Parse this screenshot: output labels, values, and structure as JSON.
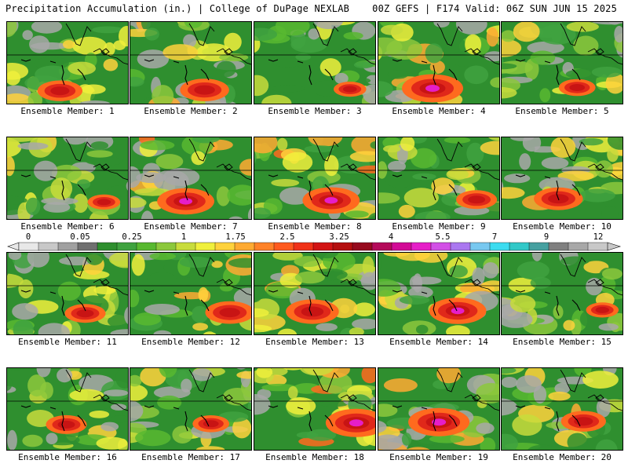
{
  "header": {
    "title_left": "Precipitation Accumulation (in.) | College of DuPage NEXLAB",
    "title_right": "00Z GEFS | F174 Valid: 06Z SUN JUN 15 2025"
  },
  "panels": [
    {
      "label": "Ensemble Member: 1",
      "seed": 11,
      "intensity": 1.1
    },
    {
      "label": "Ensemble Member: 2",
      "seed": 22,
      "intensity": 1.2
    },
    {
      "label": "Ensemble Member: 3",
      "seed": 33,
      "intensity": 0.8
    },
    {
      "label": "Ensemble Member: 4",
      "seed": 44,
      "intensity": 1.5
    },
    {
      "label": "Ensemble Member: 5",
      "seed": 55,
      "intensity": 0.9
    },
    {
      "label": "Ensemble Member: 6",
      "seed": 66,
      "intensity": 0.8
    },
    {
      "label": "Ensemble Member: 7",
      "seed": 77,
      "intensity": 1.4
    },
    {
      "label": "Ensemble Member: 8",
      "seed": 88,
      "intensity": 1.4
    },
    {
      "label": "Ensemble Member: 9",
      "seed": 99,
      "intensity": 1.0
    },
    {
      "label": "Ensemble Member: 10",
      "seed": 110,
      "intensity": 1.2
    },
    {
      "label": "Ensemble Member: 11",
      "seed": 121,
      "intensity": 1.0
    },
    {
      "label": "Ensemble Member: 12",
      "seed": 132,
      "intensity": 1.2
    },
    {
      "label": "Ensemble Member: 13",
      "seed": 143,
      "intensity": 1.3
    },
    {
      "label": "Ensemble Member: 14",
      "seed": 154,
      "intensity": 1.4
    },
    {
      "label": "Ensemble Member: 15",
      "seed": 165,
      "intensity": 0.8
    },
    {
      "label": "Ensemble Member: 16",
      "seed": 176,
      "intensity": 1.0
    },
    {
      "label": "Ensemble Member: 17",
      "seed": 187,
      "intensity": 0.9
    },
    {
      "label": "Ensemble Member: 18",
      "seed": 198,
      "intensity": 1.5
    },
    {
      "label": "Ensemble Member: 19",
      "seed": 209,
      "intensity": 1.5
    },
    {
      "label": "Ensemble Member: 20",
      "seed": 220,
      "intensity": 1.1
    }
  ],
  "colorbar": {
    "labels": [
      "0",
      "0.05",
      "0.25",
      "1",
      "1.75",
      "2.5",
      "3.25",
      "4",
      "5.5",
      "7",
      "9",
      "12"
    ],
    "colors": [
      "#e8e8e8",
      "#c8c8c8",
      "#a0a0a0",
      "#707070",
      "#2f8f2f",
      "#3fa23f",
      "#58b830",
      "#8cc83c",
      "#c8dc3c",
      "#f0f03c",
      "#ffd23c",
      "#ffaa32",
      "#ff8228",
      "#ff5a1e",
      "#f03218",
      "#d21414",
      "#b40f0f",
      "#960a1e",
      "#b40a5a",
      "#d20a96",
      "#e61ec8",
      "#d250e6",
      "#aa78f0",
      "#78c8f0",
      "#3cdcf0",
      "#32c8c8",
      "#46a0a0",
      "#808080",
      "#a8a8a8",
      "#c8c8c8"
    ]
  }
}
